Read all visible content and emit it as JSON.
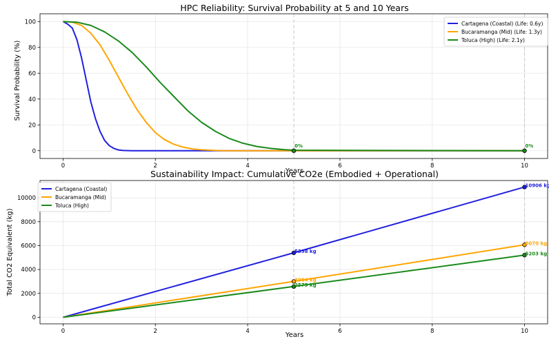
{
  "chart_data": [
    {
      "type": "line",
      "title": "HPC Reliability: Survival Probability at 5 and 10 Years",
      "xlabel": "Years",
      "ylabel": "Survival Probability (%)",
      "xlim": [
        -0.5,
        10.5
      ],
      "ylim": [
        -6,
        106
      ],
      "xticks": [
        0,
        2,
        4,
        6,
        8,
        10
      ],
      "yticks": [
        0,
        20,
        40,
        60,
        80,
        100
      ],
      "grid": true,
      "legend_position": "top-right",
      "vlines": [
        5,
        10
      ],
      "series": [
        {
          "name": "Cartagena (Coastal) (Life: 0.6y)",
          "color": "#1f1fe0",
          "x": [
            0,
            0.1,
            0.2,
            0.3,
            0.4,
            0.5,
            0.6,
            0.7,
            0.8,
            0.9,
            1.0,
            1.1,
            1.2,
            1.3,
            1.5,
            2.0,
            5,
            10
          ],
          "y": [
            100,
            98,
            95,
            86,
            72,
            55,
            38,
            25,
            15,
            8,
            4,
            1.8,
            0.6,
            0.2,
            0,
            0,
            0,
            0
          ]
        },
        {
          "name": "Bucaramanga (Mid) (Life: 1.3y)",
          "color": "#ffa500",
          "x": [
            0,
            0.2,
            0.4,
            0.6,
            0.8,
            1.0,
            1.2,
            1.4,
            1.6,
            1.8,
            2.0,
            2.2,
            2.4,
            2.6,
            2.8,
            3.0,
            3.3,
            3.6,
            5,
            10
          ],
          "y": [
            100,
            99.5,
            97,
            91,
            82,
            70,
            57,
            44,
            32,
            22,
            14,
            8.5,
            5,
            2.8,
            1.4,
            0.7,
            0.2,
            0,
            0,
            0
          ]
        },
        {
          "name": "Toluca (High) (Life: 2.1y)",
          "color": "#1a8a1a",
          "x": [
            0,
            0.3,
            0.6,
            0.9,
            1.2,
            1.5,
            1.8,
            2.1,
            2.4,
            2.7,
            3.0,
            3.3,
            3.6,
            3.9,
            4.2,
            4.5,
            4.8,
            5,
            10
          ],
          "y": [
            100,
            99.5,
            97,
            92,
            85,
            76,
            65,
            53,
            42,
            31,
            22,
            15,
            9.5,
            5.8,
            3.3,
            1.8,
            0.8,
            0.4,
            0
          ]
        }
      ],
      "annotations": [
        {
          "x": 5,
          "y": 0,
          "text": "0%",
          "color": "#1a8a1a"
        },
        {
          "x": 10,
          "y": 0,
          "text": "0%",
          "color": "#1a8a1a"
        }
      ]
    },
    {
      "type": "line",
      "title": "Sustainability Impact: Cumulative CO2e (Embodied + Operational)",
      "xlabel": "Years",
      "ylabel": "Total CO2 Equivalent (kg)",
      "xlim": [
        -0.5,
        10.5
      ],
      "ylim": [
        -550,
        11450
      ],
      "xticks": [
        0,
        2,
        4,
        6,
        8,
        10
      ],
      "yticks": [
        0,
        2000,
        4000,
        6000,
        8000,
        10000
      ],
      "grid": true,
      "legend_position": "top-left",
      "vlines": [
        5,
        10
      ],
      "series": [
        {
          "name": "Cartagena (Coastal)",
          "color": "#1f1fe0",
          "x": [
            0,
            5,
            10
          ],
          "y": [
            0,
            5398,
            10906
          ]
        },
        {
          "name": "Bucaramanga (Mid)",
          "color": "#ffa500",
          "x": [
            0,
            5,
            10
          ],
          "y": [
            0,
            3004,
            6070
          ]
        },
        {
          "name": "Toluca (High)",
          "color": "#1a8a1a",
          "x": [
            0,
            5,
            10
          ],
          "y": [
            0,
            2575,
            5203
          ]
        }
      ],
      "annotations": [
        {
          "x": 5,
          "y": 5398,
          "text": "5398 kg",
          "color": "#1f1fe0"
        },
        {
          "x": 10,
          "y": 10906,
          "text": "10906 kg",
          "color": "#1f1fe0"
        },
        {
          "x": 5,
          "y": 3004,
          "text": "3004 kg",
          "color": "#ffa500"
        },
        {
          "x": 10,
          "y": 6070,
          "text": "6070 kg",
          "color": "#ffa500"
        },
        {
          "x": 5,
          "y": 2575,
          "text": "2575 kg",
          "color": "#1a8a1a"
        },
        {
          "x": 10,
          "y": 5203,
          "text": "5203 kg",
          "color": "#1a8a1a"
        }
      ]
    }
  ]
}
